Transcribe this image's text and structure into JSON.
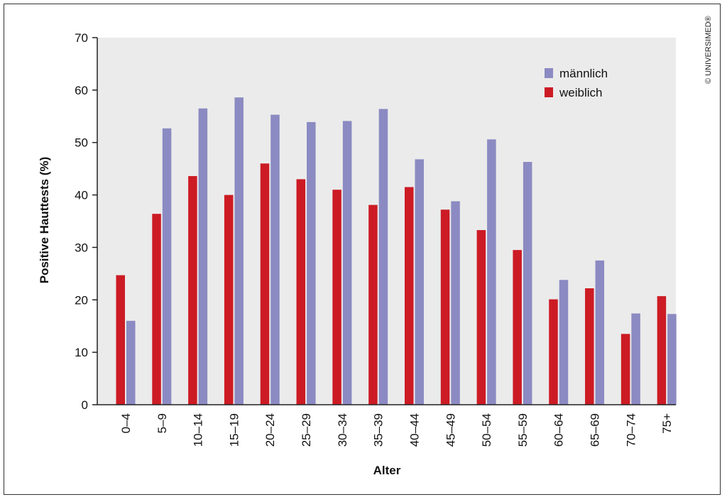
{
  "chart_data": {
    "type": "bar",
    "title": "",
    "xlabel": "Alter",
    "ylabel": "Positive Hauttests (%)",
    "ylim": [
      0,
      70
    ],
    "yticks": [
      0,
      10,
      20,
      30,
      40,
      50,
      60,
      70
    ],
    "grid": false,
    "legend_position": "top-right",
    "categories": [
      "0–4",
      "5–9",
      "10–14",
      "15–19",
      "20–24",
      "25–29",
      "30–34",
      "35–39",
      "40–44",
      "45–49",
      "50–54",
      "55–59",
      "60–64",
      "65–69",
      "70–74",
      "75+"
    ],
    "series": [
      {
        "name": "weiblich",
        "color": "#cc1b24",
        "values": [
          24.7,
          36.4,
          43.6,
          40.0,
          46.0,
          43.0,
          41.0,
          38.1,
          41.5,
          37.2,
          33.3,
          29.5,
          20.1,
          22.2,
          13.5,
          20.7
        ]
      },
      {
        "name": "männlich",
        "color": "#8b8ac2",
        "values": [
          16.0,
          52.7,
          56.5,
          58.6,
          55.3,
          53.9,
          54.1,
          56.4,
          46.8,
          38.8,
          50.6,
          46.3,
          23.8,
          27.5,
          17.4,
          17.3
        ]
      }
    ],
    "legend_order": [
      "männlich",
      "weiblich"
    ],
    "plot_background": "#ebebeb"
  },
  "copyright": "© UNIVERSIMED®"
}
